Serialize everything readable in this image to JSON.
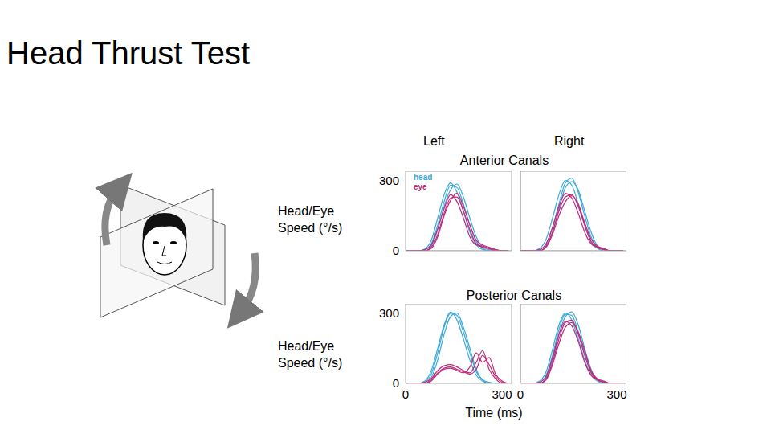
{
  "title": "Head Thrust Test",
  "column_labels": [
    "Left",
    "Right"
  ],
  "row_labels": [
    "Anterior Canals",
    "Posterior Canals"
  ],
  "y_label": "Head/Eye Speed (°/s)",
  "x_label": "Time (ms)",
  "chart_data": [
    {
      "type": "line",
      "grid": false,
      "legend": "upper left",
      "tick_labels": "y",
      "x": [
        0,
        20,
        40,
        60,
        80,
        100,
        120,
        140,
        160,
        180,
        200,
        220,
        240,
        260,
        280,
        300,
        320
      ],
      "xlim": [
        0,
        330
      ],
      "xticks": [
        0,
        300
      ],
      "ylim": [
        0,
        340
      ],
      "yticks": [
        0,
        300
      ],
      "series": [
        {
          "name": "head",
          "color": "#3ba8d8",
          "values": [
            0,
            0,
            0,
            5,
            30,
            110,
            210,
            280,
            270,
            200,
            110,
            40,
            10,
            0,
            0,
            0,
            0
          ]
        },
        {
          "name": "head",
          "color": "#3ba8d8",
          "values": [
            0,
            0,
            0,
            0,
            20,
            90,
            190,
            260,
            285,
            230,
            140,
            60,
            15,
            5,
            0,
            0,
            0
          ]
        },
        {
          "name": "head",
          "color": "#3ba8d8",
          "values": [
            0,
            0,
            0,
            8,
            45,
            140,
            240,
            290,
            250,
            170,
            80,
            25,
            5,
            0,
            0,
            0,
            0
          ]
        },
        {
          "name": "eye",
          "color": "#c0287a",
          "values": [
            0,
            0,
            0,
            0,
            15,
            70,
            160,
            225,
            230,
            170,
            90,
            30,
            15,
            10,
            5,
            0,
            0
          ]
        },
        {
          "name": "eye",
          "color": "#c0287a",
          "values": [
            0,
            0,
            0,
            5,
            25,
            95,
            180,
            240,
            210,
            140,
            60,
            25,
            20,
            10,
            0,
            0,
            0
          ]
        },
        {
          "name": "eye",
          "color": "#c0287a",
          "values": [
            0,
            0,
            0,
            0,
            10,
            60,
            150,
            215,
            245,
            190,
            110,
            45,
            25,
            15,
            5,
            0,
            0
          ]
        }
      ]
    },
    {
      "type": "line",
      "grid": false,
      "tick_labels": false,
      "x": [
        0,
        20,
        40,
        60,
        80,
        100,
        120,
        140,
        160,
        180,
        200,
        220,
        240,
        260,
        280,
        300,
        320
      ],
      "xlim": [
        0,
        330
      ],
      "xticks": [
        0,
        300
      ],
      "ylim": [
        0,
        340
      ],
      "yticks": [
        0,
        300
      ],
      "series": [
        {
          "name": "head",
          "color": "#3ba8d8",
          "values": [
            0,
            0,
            0,
            5,
            30,
            100,
            200,
            290,
            310,
            250,
            150,
            60,
            15,
            5,
            0,
            0,
            0
          ]
        },
        {
          "name": "head",
          "color": "#3ba8d8",
          "values": [
            0,
            0,
            0,
            0,
            20,
            80,
            180,
            270,
            295,
            260,
            170,
            80,
            20,
            5,
            0,
            0,
            0
          ]
        },
        {
          "name": "head",
          "color": "#3ba8d8",
          "values": [
            0,
            0,
            0,
            10,
            50,
            140,
            240,
            300,
            280,
            200,
            110,
            35,
            10,
            0,
            0,
            0,
            0
          ]
        },
        {
          "name": "eye",
          "color": "#c0287a",
          "values": [
            0,
            0,
            0,
            0,
            20,
            80,
            170,
            230,
            240,
            190,
            110,
            40,
            15,
            5,
            0,
            0,
            0
          ]
        },
        {
          "name": "eye",
          "color": "#c0287a",
          "values": [
            0,
            0,
            0,
            5,
            30,
            100,
            190,
            245,
            225,
            160,
            80,
            30,
            15,
            5,
            0,
            0,
            0
          ]
        },
        {
          "name": "eye",
          "color": "#c0287a",
          "values": [
            0,
            0,
            0,
            0,
            15,
            70,
            150,
            210,
            235,
            200,
            120,
            50,
            20,
            10,
            0,
            0,
            0
          ]
        }
      ]
    },
    {
      "type": "line",
      "grid": false,
      "tick_labels": true,
      "x": [
        0,
        20,
        40,
        60,
        80,
        100,
        120,
        140,
        160,
        180,
        200,
        220,
        240,
        260,
        280,
        300,
        320
      ],
      "xlim": [
        0,
        330
      ],
      "xticks": [
        0,
        300
      ],
      "ylim": [
        0,
        340
      ],
      "yticks": [
        0,
        300
      ],
      "series": [
        {
          "name": "head",
          "color": "#3ba8d8",
          "values": [
            0,
            0,
            0,
            5,
            40,
            130,
            240,
            300,
            290,
            220,
            130,
            50,
            15,
            0,
            0,
            0,
            0
          ]
        },
        {
          "name": "head",
          "color": "#3ba8d8",
          "values": [
            0,
            0,
            0,
            0,
            25,
            100,
            210,
            285,
            300,
            240,
            150,
            60,
            15,
            5,
            0,
            0,
            0
          ]
        },
        {
          "name": "head",
          "color": "#3ba8d8",
          "values": [
            0,
            0,
            0,
            10,
            55,
            150,
            250,
            305,
            270,
            190,
            100,
            35,
            10,
            0,
            0,
            0,
            0
          ]
        },
        {
          "name": "eye",
          "color": "#c0287a",
          "values": [
            0,
            0,
            0,
            0,
            15,
            45,
            65,
            70,
            60,
            50,
            40,
            60,
            120,
            80,
            30,
            5,
            0
          ]
        },
        {
          "name": "eye",
          "color": "#c0287a",
          "values": [
            0,
            0,
            0,
            5,
            20,
            55,
            75,
            80,
            70,
            55,
            45,
            90,
            140,
            60,
            20,
            0,
            0
          ]
        },
        {
          "name": "eye",
          "color": "#c0287a",
          "values": [
            0,
            0,
            0,
            0,
            10,
            40,
            60,
            65,
            55,
            45,
            70,
            130,
            90,
            110,
            40,
            10,
            0
          ]
        }
      ]
    },
    {
      "type": "line",
      "grid": false,
      "tick_labels": "x",
      "x": [
        0,
        20,
        40,
        60,
        80,
        100,
        120,
        140,
        160,
        180,
        200,
        220,
        240,
        260,
        280,
        300,
        320
      ],
      "xlim": [
        0,
        330
      ],
      "xticks": [
        0,
        300
      ],
      "ylim": [
        0,
        340
      ],
      "yticks": [
        0,
        300
      ],
      "series": [
        {
          "name": "head",
          "color": "#3ba8d8",
          "values": [
            0,
            0,
            0,
            5,
            35,
            120,
            230,
            295,
            290,
            220,
            130,
            50,
            15,
            5,
            0,
            0,
            0
          ]
        },
        {
          "name": "head",
          "color": "#3ba8d8",
          "values": [
            0,
            0,
            0,
            0,
            25,
            100,
            210,
            285,
            305,
            250,
            150,
            60,
            15,
            5,
            0,
            0,
            0
          ]
        },
        {
          "name": "head",
          "color": "#3ba8d8",
          "values": [
            0,
            0,
            0,
            10,
            50,
            145,
            250,
            300,
            270,
            190,
            100,
            35,
            10,
            0,
            0,
            0,
            0
          ]
        },
        {
          "name": "eye",
          "color": "#c0287a",
          "values": [
            0,
            0,
            0,
            0,
            20,
            90,
            190,
            260,
            270,
            210,
            120,
            45,
            15,
            5,
            0,
            0,
            0
          ]
        },
        {
          "name": "eye",
          "color": "#c0287a",
          "values": [
            0,
            0,
            0,
            5,
            30,
            110,
            210,
            265,
            245,
            180,
            90,
            35,
            15,
            5,
            0,
            0,
            0
          ]
        },
        {
          "name": "eye",
          "color": "#c0287a",
          "values": [
            0,
            0,
            0,
            0,
            15,
            80,
            170,
            240,
            260,
            220,
            140,
            55,
            20,
            10,
            0,
            0,
            0
          ]
        }
      ]
    }
  ]
}
